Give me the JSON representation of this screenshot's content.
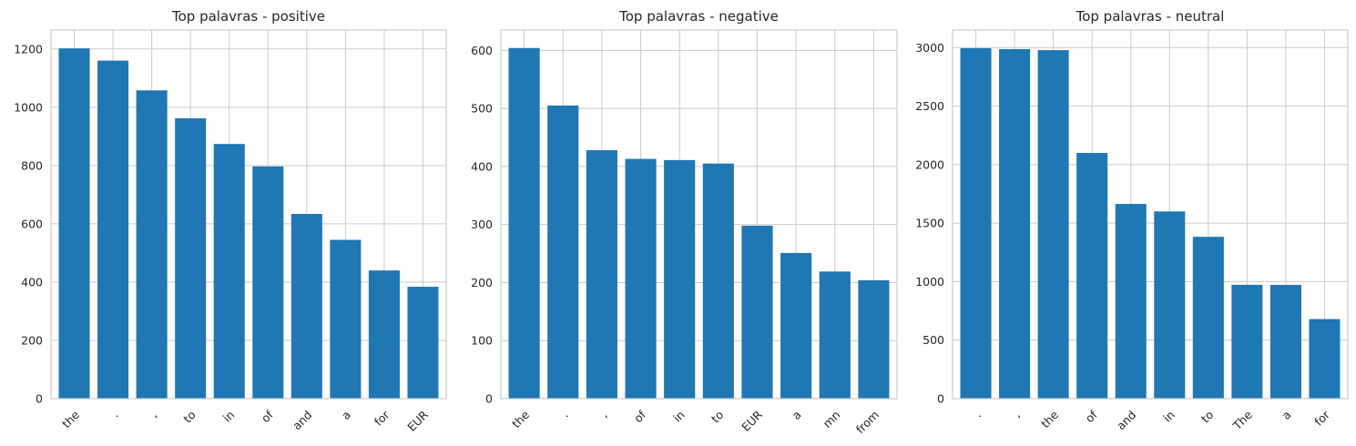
{
  "chart_data": [
    {
      "type": "bar",
      "title": "Top palavras - positive",
      "categories": [
        "the",
        ".",
        ",",
        "to",
        "in",
        "of",
        "and",
        "a",
        "for",
        "EUR"
      ],
      "values": [
        1202,
        1160,
        1058,
        962,
        874,
        797,
        634,
        545,
        440,
        384
      ],
      "ylim": [
        0,
        1265
      ],
      "yticks": [
        0,
        200,
        400,
        600,
        800,
        1000,
        1200
      ],
      "grid": true,
      "color": "#1f77b4"
    },
    {
      "type": "bar",
      "title": "Top palavras - negative",
      "categories": [
        "the",
        ".",
        ",",
        "of",
        "in",
        "to",
        "EUR",
        "a",
        "mn",
        "from"
      ],
      "values": [
        604,
        505,
        428,
        413,
        411,
        405,
        298,
        251,
        219,
        204
      ],
      "ylim": [
        0,
        635
      ],
      "yticks": [
        0,
        100,
        200,
        300,
        400,
        500,
        600
      ],
      "grid": true,
      "color": "#1f77b4"
    },
    {
      "type": "bar",
      "title": "Top palavras - neutral",
      "categories": [
        ".",
        ",",
        "the",
        "of",
        "and",
        "in",
        "to",
        "The",
        "a",
        "for"
      ],
      "values": [
        2995,
        2987,
        2978,
        2100,
        1664,
        1600,
        1383,
        973,
        972,
        680
      ],
      "ylim": [
        0,
        3150
      ],
      "yticks": [
        0,
        500,
        1000,
        1500,
        2000,
        2500,
        3000
      ],
      "grid": true,
      "color": "#1f77b4"
    }
  ]
}
